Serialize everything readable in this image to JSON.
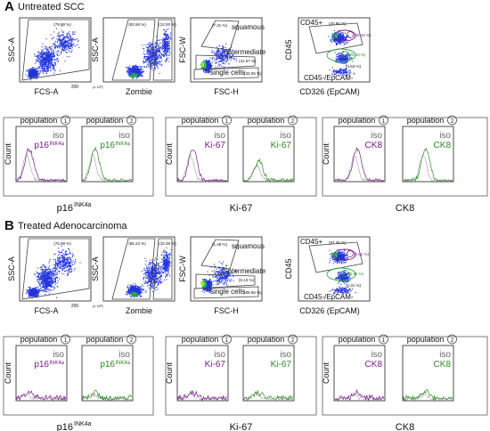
{
  "figure": {
    "colors": {
      "purple": "#7a1a8c",
      "green": "#2e8b22",
      "dots": "#2233dd",
      "gray": "#555555"
    },
    "panels": [
      {
        "letter": "A",
        "title": "Untreated SCC",
        "scatter": [
          {
            "ylabel": "SSC-A",
            "xlabel": "FCS-A",
            "pct": "(79.98 %)",
            "xtick": "200",
            "xunit": "(x 10³)"
          },
          {
            "ylabel": "SSC-A",
            "xlabel": "Zombie",
            "pct_left": "(83.56 %)",
            "pct_right": "(12.00 %)"
          },
          {
            "ylabel": "FSC-W",
            "xlabel": "FSC-H",
            "pct": "(7.31 %)",
            "gates": [
              "squamous",
              "intermediate",
              "single cells"
            ],
            "gate_pct": [
              "(41.57 %)",
              "(32.09 %)"
            ]
          },
          {
            "ylabel": "CD45",
            "xlabel": "CD326 (EpCAM)",
            "top_label": "CD45+",
            "top_pct": "(20.95 %)",
            "p1": "(30.15 %)",
            "p2": "(20.43 %)",
            "neg_label": "CD45-/EpCAM-",
            "neg_pct": "(4.53 %)"
          }
        ],
        "groups": [
          {
            "caption": "p16INK4a",
            "cap_main": "p16",
            "cap_sup": "INK4a",
            "hist": [
              {
                "title": "population",
                "num": "1",
                "iso": "iso",
                "marker": "p16",
                "sup": "INK4a",
                "ylabel": "Count"
              },
              {
                "title": "population",
                "num": "2",
                "iso": "iso",
                "marker": "p16",
                "sup": "INK4a"
              }
            ]
          },
          {
            "caption": "Ki-67",
            "hist": [
              {
                "title": "population",
                "num": "1",
                "iso": "iso",
                "marker": "Ki-67",
                "ylabel": "Count"
              },
              {
                "title": "population",
                "num": "2",
                "iso": "iso",
                "marker": "Ki-67"
              }
            ]
          },
          {
            "caption": "CK8",
            "hist": [
              {
                "title": "population",
                "num": "1",
                "iso": "iso",
                "marker": "CK8",
                "ylabel": "Count"
              },
              {
                "title": "population",
                "num": "2",
                "iso": "iso",
                "marker": "CK8"
              }
            ]
          }
        ]
      },
      {
        "letter": "B",
        "title": "Treated Adenocarcinoma",
        "scatter": [
          {
            "ylabel": "SSC-A",
            "xlabel": "FCS-A",
            "pct": "(75.98 %)",
            "xtick": "200",
            "xunit": "(x 10³)"
          },
          {
            "ylabel": "SSC-A",
            "xlabel": "Zombie",
            "pct_left": "(86.22 %)",
            "pct_right": "(10.38 %)"
          },
          {
            "ylabel": "FSC-W",
            "xlabel": "FSC-H",
            "pct": "(1.48 %)",
            "gates": [
              "squamous",
              "intermediate",
              "single cells"
            ],
            "gate_pct": [
              "(5.13 %)",
              "(88.68 %)"
            ]
          },
          {
            "ylabel": "CD45",
            "xlabel": "CD326 (EpCAM)",
            "top_label": "CD45+",
            "top_pct": "(97.35 %)",
            "p1": "(0.82 %)",
            "p2": "(0.35 %)",
            "neg_label": "CD45-/EpCAM-",
            "neg_pct": "(0.31 %)"
          }
        ],
        "groups": [
          {
            "caption": "p16INK4a",
            "cap_main": "p16",
            "cap_sup": "INK4a",
            "hist": [
              {
                "title": "population",
                "num": "1",
                "iso": "iso",
                "marker": "p16",
                "sup": "INK4a",
                "ylabel": "Count"
              },
              {
                "title": "population",
                "num": "2",
                "iso": "iso",
                "marker": "p16",
                "sup": "INK4a"
              }
            ]
          },
          {
            "caption": "Ki-67",
            "hist": [
              {
                "title": "population",
                "num": "1",
                "iso": "iso",
                "marker": "Ki-67",
                "ylabel": "Count"
              },
              {
                "title": "population",
                "num": "2",
                "iso": "iso",
                "marker": "Ki-67"
              }
            ]
          },
          {
            "caption": "CK8",
            "hist": [
              {
                "title": "population",
                "num": "1",
                "iso": "iso",
                "marker": "CK8",
                "ylabel": "Count"
              },
              {
                "title": "population",
                "num": "2",
                "iso": "iso",
                "marker": "CK8"
              }
            ]
          }
        ]
      }
    ]
  }
}
